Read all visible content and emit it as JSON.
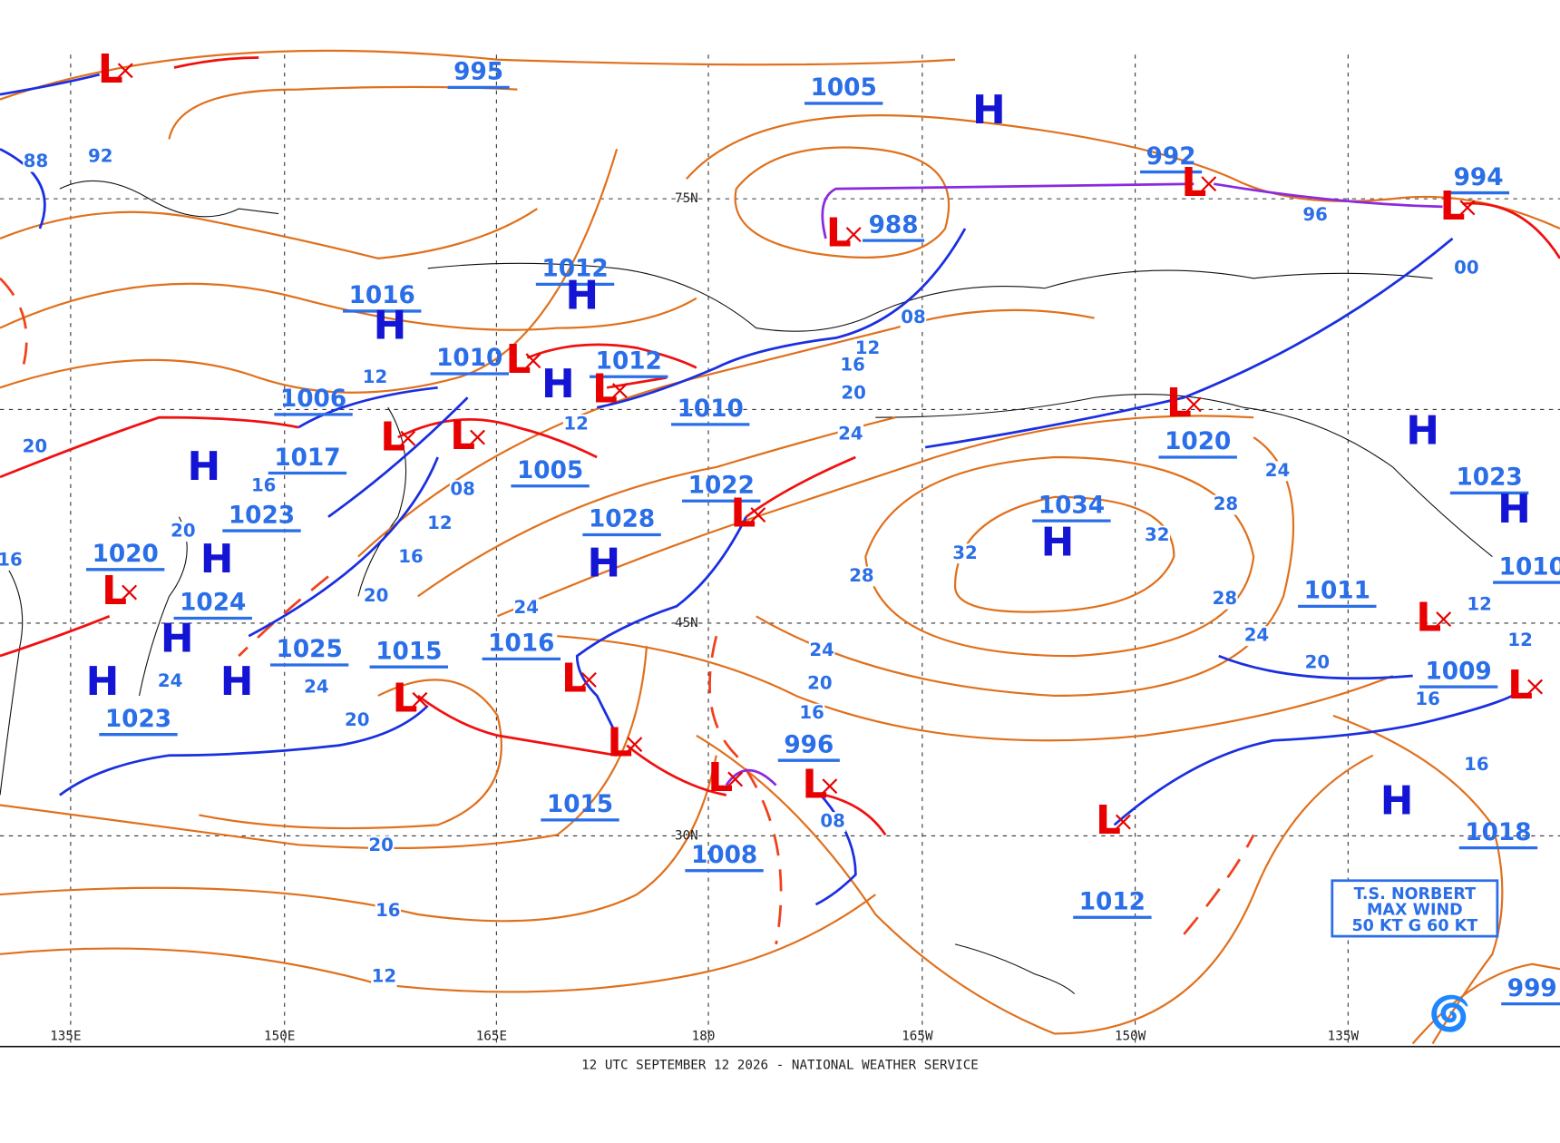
{
  "map": {
    "footer": "12 UTC SEPTEMBER 12 2026 - NATIONAL WEATHER SERVICE",
    "longitude_labels": [
      "135E",
      "150E",
      "165E",
      "180",
      "165W",
      "150W",
      "135W"
    ],
    "latitude_labels": [
      "75N",
      "45N",
      "30N"
    ],
    "pressure_labels": [
      "995",
      "1005",
      "992",
      "994",
      "988",
      "1012",
      "1016",
      "1010",
      "1012",
      "1006",
      "1010",
      "1017",
      "1005",
      "1020",
      "1022",
      "1023",
      "1028",
      "1034",
      "1023",
      "1020",
      "1024",
      "1011",
      "1010",
      "1025",
      "1015",
      "1016",
      "1009",
      "1023",
      "996",
      "1015",
      "1008",
      "1018",
      "1012",
      "999"
    ],
    "high_centers": [
      "H",
      "H",
      "H",
      "H",
      "H",
      "H",
      "H",
      "H",
      "H",
      "H",
      "H",
      "H",
      "H",
      "H"
    ],
    "low_centers": [
      "L",
      "L",
      "L",
      "L",
      "L",
      "L",
      "L",
      "L",
      "L",
      "L",
      "L",
      "L",
      "L",
      "L",
      "L",
      "L",
      "L",
      "L",
      "L"
    ],
    "isobar_labels": [
      "88",
      "92",
      "96",
      "00",
      "08",
      "12",
      "16",
      "20",
      "24",
      "12",
      "12",
      "20",
      "16",
      "08",
      "12",
      "16",
      "20",
      "20",
      "16",
      "24",
      "28",
      "32",
      "32",
      "28",
      "28",
      "24",
      "24",
      "24",
      "20",
      "16",
      "20",
      "12",
      "12",
      "16",
      "24",
      "24",
      "20",
      "16",
      "08",
      "20",
      "16",
      "12"
    ],
    "storm_box": [
      "T.S. NORBERT",
      "MAX WIND",
      "50 KT G 60 KT"
    ]
  }
}
